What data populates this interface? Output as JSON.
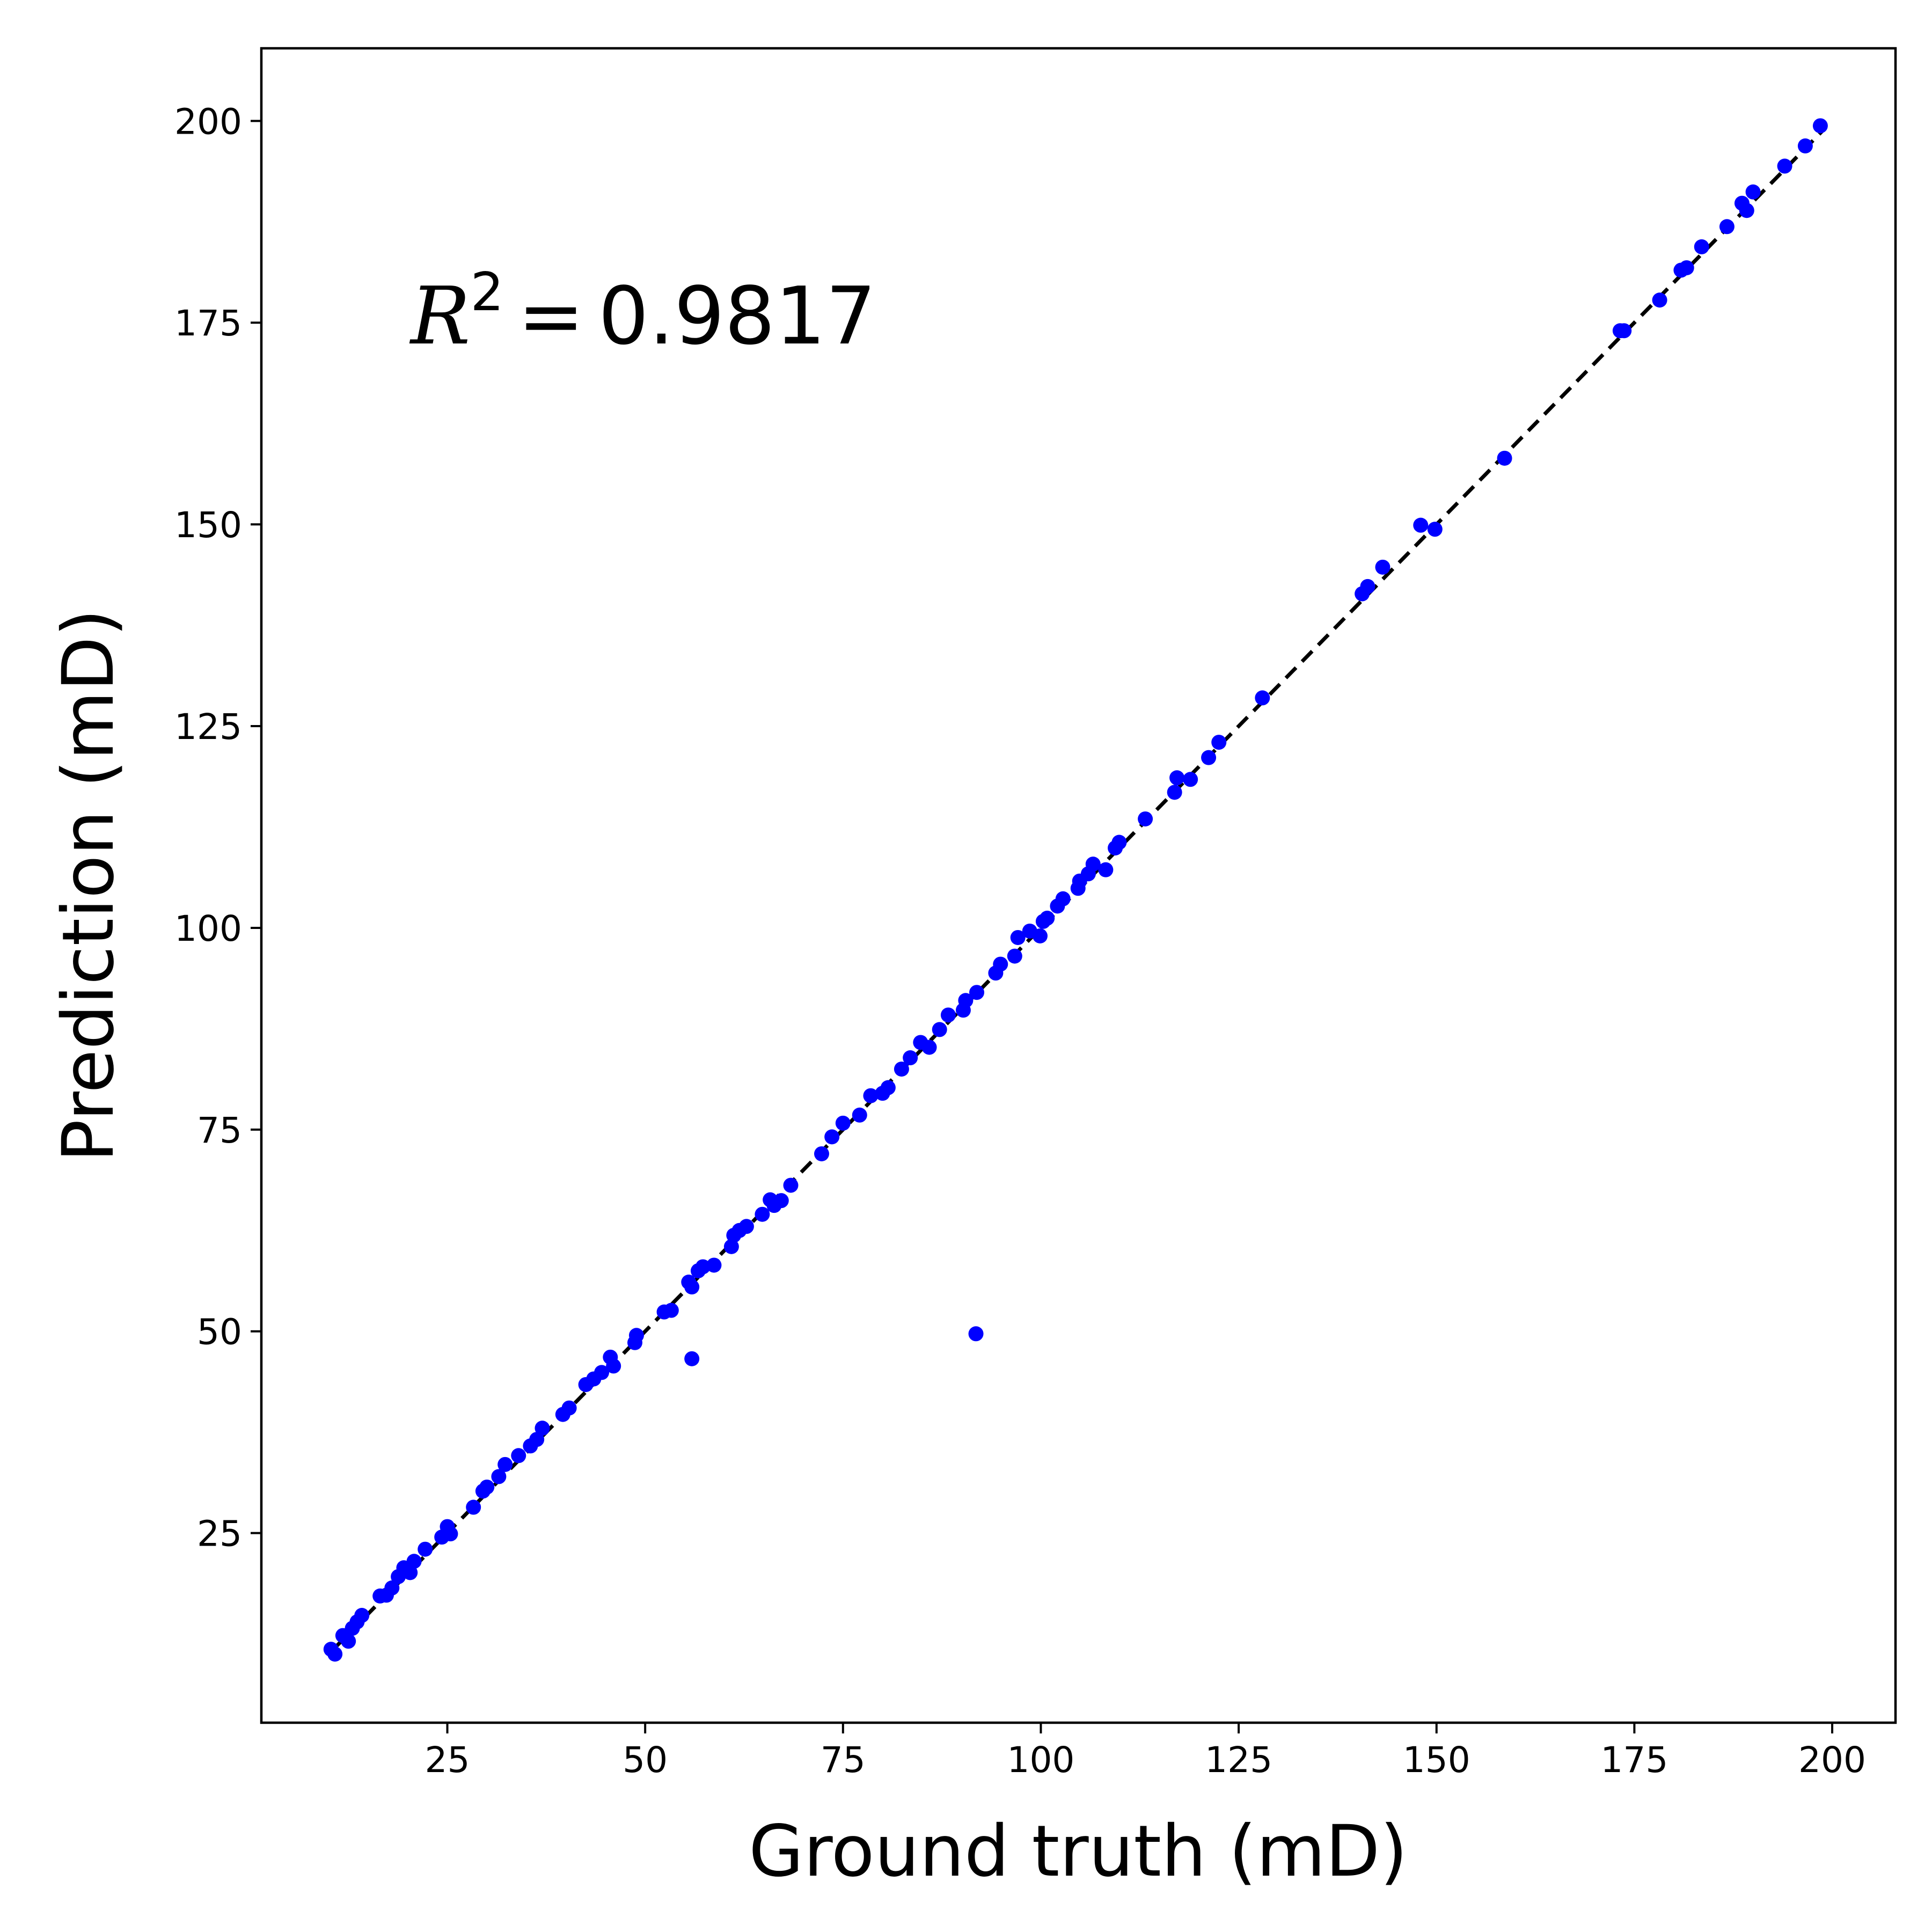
{
  "chart_data": {
    "type": "scatter",
    "title": "",
    "xlabel": "Ground truth (mD)",
    "ylabel": "Prediction (mD)",
    "xlim": [
      1.5,
      208
    ],
    "ylim": [
      1.5,
      209
    ],
    "xticks": [
      25,
      50,
      75,
      100,
      125,
      150,
      175,
      200
    ],
    "yticks": [
      25,
      50,
      75,
      100,
      125,
      150,
      175,
      200
    ],
    "grid": false,
    "annotation": {
      "symbol": "R",
      "exponent": "2",
      "equals": "=",
      "value": "0.9817"
    },
    "reference_line": {
      "style": "dashed",
      "color": "#000000",
      "points": [
        [
          10.5,
          10.5
        ],
        [
          199,
          199
        ]
      ]
    },
    "marker_color": "#0000ff",
    "series": [
      {
        "points": [
          [
            10.3,
            10.6
          ],
          [
            10.8,
            10.0
          ],
          [
            11.8,
            12.3
          ],
          [
            12.5,
            11.6
          ],
          [
            13.0,
            13.2
          ],
          [
            13.6,
            14.0
          ],
          [
            14.2,
            14.8
          ],
          [
            16.5,
            17.2
          ],
          [
            17.3,
            17.3
          ],
          [
            18.0,
            18.2
          ],
          [
            18.8,
            19.6
          ],
          [
            19.5,
            20.7
          ],
          [
            20.3,
            20.1
          ],
          [
            20.8,
            21.5
          ],
          [
            22.2,
            23.0
          ],
          [
            24.3,
            24.5
          ],
          [
            25.0,
            25.8
          ],
          [
            25.4,
            24.9
          ],
          [
            28.3,
            28.2
          ],
          [
            29.5,
            30.2
          ],
          [
            30.0,
            30.7
          ],
          [
            31.5,
            32.0
          ],
          [
            32.3,
            33.5
          ],
          [
            34.0,
            34.6
          ],
          [
            35.5,
            35.8
          ],
          [
            36.3,
            36.6
          ],
          [
            37.0,
            38.0
          ],
          [
            39.6,
            39.7
          ],
          [
            40.4,
            40.5
          ],
          [
            42.5,
            43.4
          ],
          [
            43.5,
            44.1
          ],
          [
            44.5,
            44.9
          ],
          [
            45.6,
            46.8
          ],
          [
            46.0,
            45.7
          ],
          [
            48.7,
            48.6
          ],
          [
            48.9,
            49.5
          ],
          [
            52.4,
            52.4
          ],
          [
            53.3,
            52.6
          ],
          [
            55.5,
            56.1
          ],
          [
            55.9,
            55.5
          ],
          [
            55.9,
            46.6
          ],
          [
            56.7,
            57.5
          ],
          [
            57.3,
            58.0
          ],
          [
            58.7,
            58.2
          ],
          [
            60.9,
            60.5
          ],
          [
            61.2,
            61.9
          ],
          [
            61.9,
            62.5
          ],
          [
            62.8,
            63.0
          ],
          [
            64.8,
            64.5
          ],
          [
            65.8,
            66.3
          ],
          [
            66.3,
            65.6
          ],
          [
            67.2,
            66.2
          ],
          [
            68.4,
            68.1
          ],
          [
            72.3,
            72.0
          ],
          [
            73.6,
            74.1
          ],
          [
            75.0,
            75.8
          ],
          [
            77.1,
            76.8
          ],
          [
            78.5,
            79.2
          ],
          [
            80.0,
            79.5
          ],
          [
            80.7,
            80.2
          ],
          [
            82.4,
            82.5
          ],
          [
            83.5,
            83.9
          ],
          [
            84.8,
            85.8
          ],
          [
            85.9,
            85.2
          ],
          [
            87.2,
            87.4
          ],
          [
            88.3,
            89.2
          ],
          [
            90.2,
            89.8
          ],
          [
            90.5,
            91.0
          ],
          [
            91.9,
            92.0
          ],
          [
            91.8,
            49.7
          ],
          [
            94.3,
            94.4
          ],
          [
            94.9,
            95.5
          ],
          [
            96.7,
            96.5
          ],
          [
            97.1,
            98.8
          ],
          [
            98.6,
            99.6
          ],
          [
            99.9,
            99.0
          ],
          [
            100.3,
            100.8
          ],
          [
            100.8,
            101.2
          ],
          [
            102.1,
            102.7
          ],
          [
            102.8,
            103.6
          ],
          [
            104.7,
            104.9
          ],
          [
            104.9,
            105.8
          ],
          [
            106.0,
            106.7
          ],
          [
            106.6,
            107.9
          ],
          [
            108.2,
            107.2
          ],
          [
            109.4,
            109.9
          ],
          [
            109.9,
            110.6
          ],
          [
            113.2,
            113.5
          ],
          [
            116.9,
            116.8
          ],
          [
            117.2,
            118.6
          ],
          [
            118.9,
            118.4
          ],
          [
            121.2,
            121.1
          ],
          [
            122.5,
            123.0
          ],
          [
            128.0,
            128.5
          ],
          [
            140.6,
            141.4
          ],
          [
            141.3,
            142.3
          ],
          [
            143.2,
            144.7
          ],
          [
            148.0,
            149.9
          ],
          [
            149.8,
            149.4
          ],
          [
            158.6,
            158.2
          ],
          [
            173.2,
            174.0
          ],
          [
            173.7,
            174.0
          ],
          [
            178.2,
            177.8
          ],
          [
            180.9,
            181.5
          ],
          [
            181.6,
            181.8
          ],
          [
            183.5,
            184.4
          ],
          [
            186.7,
            186.9
          ],
          [
            188.6,
            189.8
          ],
          [
            189.2,
            188.9
          ],
          [
            190.0,
            191.2
          ],
          [
            194.0,
            194.4
          ],
          [
            196.6,
            196.9
          ],
          [
            198.5,
            199.4
          ]
        ]
      }
    ]
  }
}
